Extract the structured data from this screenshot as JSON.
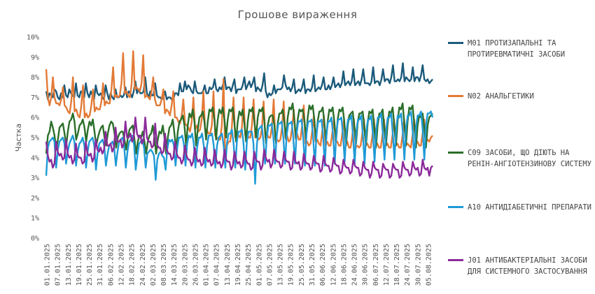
{
  "chart_data": {
    "type": "line",
    "title": "Грошове вираження",
    "ylabel": "Частка",
    "ylim": [
      0,
      10
    ],
    "y_ticks": [
      "0%",
      "1%",
      "2%",
      "3%",
      "4%",
      "5%",
      "6%",
      "7%",
      "8%",
      "9%",
      "10%"
    ],
    "x_tick_labels": [
      "01.01.2025",
      "07.01.2025",
      "13.01.2025",
      "19.01.2025",
      "25.01.2025",
      "31.01.2025",
      "06.02.2025",
      "12.02.2025",
      "18.02.2025",
      "24.02.2025",
      "02.03.2025",
      "08.03.2025",
      "14.03.2025",
      "20.03.2025",
      "26.03.2025",
      "01.04.2025",
      "07.04.2025",
      "13.04.2025",
      "19.04.2025",
      "25.04.2025",
      "01.05.2025",
      "07.05.2025",
      "13.05.2025",
      "19.05.2025",
      "25.05.2025",
      "31.05.2025",
      "06.06.2025",
      "12.06.2025",
      "18.06.2025",
      "24.06.2025",
      "30.06.2025",
      "06.07.2025",
      "12.07.2025",
      "18.07.2025",
      "24.07.2025",
      "30.07.2025",
      "05.08.2025"
    ],
    "x_start": "01.01.2025",
    "x_end": "08.08.2025",
    "legend_position": "right",
    "grid": false,
    "series": [
      {
        "name": "M01 ПРОТИЗАПАЛЬНІ ТА ПРОТИРЕВМАТИЧНІ ЗАСОБИ",
        "color": "#1b5a7a",
        "values": [
          7.3,
          6.9,
          7.2,
          7.1,
          7.0,
          7.4,
          7.3,
          7.0,
          6.9,
          7.2,
          7.0,
          7.6,
          7.1,
          7.0,
          7.4,
          7.2,
          7.1,
          7.0,
          7.7,
          7.1,
          7.0,
          7.3,
          7.2,
          7.0,
          7.7,
          7.2,
          7.0,
          7.3,
          7.1,
          6.9,
          7.6,
          7.2,
          7.1,
          7.2,
          7.0,
          6.9,
          7.6,
          7.2,
          6.9,
          7.2,
          7.0,
          6.9,
          7.4,
          7.0,
          7.0,
          7.1,
          7.0,
          7.1,
          7.5,
          7.0,
          7.3,
          7.2,
          7.0,
          7.3,
          7.8,
          7.2,
          7.4,
          7.2,
          7.2,
          7.3,
          8.0,
          7.2,
          7.0,
          7.3,
          7.1,
          7.1,
          7.7,
          7.1,
          7.0,
          7.0,
          6.9,
          7.0,
          7.3,
          6.9,
          7.0,
          7.0,
          6.9,
          6.9,
          7.2,
          7.2,
          7.1,
          7.7,
          7.3,
          7.3,
          7.8,
          7.4,
          7.6,
          7.5,
          7.3,
          7.2,
          7.8,
          7.3,
          7.2,
          7.2,
          7.2,
          7.3,
          7.6,
          7.2,
          7.2,
          7.5,
          7.4,
          7.5,
          7.9,
          7.4,
          7.3,
          7.5,
          7.4,
          7.6,
          8.0,
          7.4,
          7.5,
          7.5,
          7.3,
          7.6,
          7.9,
          7.2,
          7.4,
          7.4,
          7.4,
          7.6,
          8.0,
          7.4,
          7.6,
          7.8,
          7.5,
          7.7,
          8.0,
          7.3,
          7.5,
          7.4,
          7.3,
          7.6,
          8.2,
          7.3,
          7.0,
          7.2,
          7.1,
          7.2,
          7.6,
          7.2,
          7.4,
          7.4,
          7.4,
          7.5,
          8.1,
          7.6,
          7.4,
          7.5,
          7.3,
          7.5,
          7.9,
          7.2,
          7.3,
          7.4,
          7.3,
          7.5,
          7.9,
          7.2,
          7.4,
          7.4,
          7.3,
          7.5,
          8.1,
          7.3,
          7.4,
          7.5,
          7.4,
          7.6,
          8.0,
          7.4,
          7.4,
          7.6,
          7.4,
          7.6,
          8.0,
          7.5,
          7.6,
          7.7,
          7.5,
          7.7,
          8.3,
          7.6,
          7.7,
          7.8,
          7.6,
          7.8,
          8.4,
          7.6,
          7.7,
          7.8,
          7.6,
          7.9,
          8.4,
          7.7,
          7.7,
          7.7,
          7.6,
          7.8,
          8.5,
          7.7,
          7.8,
          7.8,
          7.6,
          7.9,
          8.4,
          7.8,
          7.9,
          7.9,
          7.7,
          8.0,
          8.6,
          7.8,
          7.8,
          7.9,
          7.8,
          8.0,
          8.7,
          7.8,
          8.0,
          7.9,
          7.8,
          7.9,
          8.5,
          7.8,
          8.0,
          8.0,
          7.8,
          8.1,
          8.6,
          7.9,
          7.8,
          7.9,
          7.7,
          7.8,
          7.9
        ]
      },
      {
        "name": "N02 АНАЛЬГЕТИКИ",
        "color": "#e37a36",
        "values": [
          8.4,
          7.0,
          6.6,
          7.0,
          8.0,
          7.0,
          6.7,
          6.7,
          6.6,
          6.9,
          7.5,
          6.6,
          6.5,
          6.3,
          6.2,
          6.8,
          8.0,
          6.3,
          6.4,
          6.1,
          6.0,
          6.6,
          7.6,
          6.0,
          6.2,
          6.0,
          6.1,
          6.6,
          7.4,
          6.3,
          6.5,
          6.4,
          6.4,
          6.8,
          7.7,
          6.6,
          6.8,
          6.7,
          6.7,
          7.4,
          8.5,
          7.0,
          7.1,
          7.0,
          7.1,
          7.7,
          9.2,
          7.2,
          7.3,
          7.1,
          7.0,
          7.6,
          9.3,
          7.4,
          7.5,
          7.4,
          7.3,
          7.7,
          9.1,
          7.0,
          7.1,
          7.0,
          6.9,
          7.3,
          8.0,
          6.9,
          6.6,
          6.6,
          6.6,
          6.9,
          7.4,
          6.2,
          6.4,
          6.3,
          6.1,
          6.6,
          7.3,
          6.0,
          6.0,
          5.8,
          5.7,
          6.1,
          6.9,
          5.7,
          5.6,
          5.5,
          5.3,
          5.8,
          7.0,
          5.4,
          5.6,
          5.3,
          5.4,
          5.9,
          7.3,
          5.4,
          5.4,
          5.2,
          5.2,
          5.6,
          7.3,
          5.1,
          5.0,
          4.9,
          4.9,
          5.6,
          7.9,
          4.1,
          4.6,
          4.8,
          4.8,
          5.5,
          7.0,
          5.0,
          5.2,
          5.1,
          5.0,
          5.5,
          7.0,
          5.1,
          5.2,
          5.0,
          5.0,
          5.6,
          6.9,
          5.0,
          5.1,
          4.9,
          5.0,
          5.5,
          6.8,
          5.0,
          5.2,
          5.0,
          5.0,
          5.6,
          6.9,
          4.9,
          4.9,
          4.8,
          4.9,
          5.5,
          6.8,
          5.0,
          5.1,
          4.8,
          4.9,
          5.5,
          6.4,
          5.0,
          5.2,
          4.9,
          4.9,
          5.6,
          6.6,
          4.7,
          4.8,
          4.6,
          4.7,
          5.3,
          6.1,
          4.8,
          4.9,
          4.7,
          4.6,
          5.3,
          6.1,
          4.6,
          4.8,
          4.6,
          4.6,
          5.2,
          5.9,
          4.8,
          4.8,
          4.6,
          4.6,
          5.2,
          5.9,
          4.7,
          4.8,
          4.5,
          4.5,
          5.1,
          5.9,
          4.5,
          4.6,
          4.5,
          4.6,
          5.2,
          5.9,
          4.6,
          4.7,
          4.5,
          4.5,
          5.1,
          5.9,
          4.6,
          4.7,
          4.5,
          4.5,
          5.1,
          5.9,
          4.6,
          4.7,
          4.5,
          4.5,
          5.1,
          5.9,
          4.6,
          4.7,
          4.5,
          4.5,
          5.1,
          5.9,
          4.6,
          4.7,
          4.6,
          4.5,
          5.1,
          5.9,
          4.7,
          4.8,
          4.6,
          4.6,
          5.2,
          5.9,
          4.8,
          4.9,
          4.8,
          5.0,
          5.1
        ]
      },
      {
        "name": "C09 ЗАСОБИ, ЩО ДІЮТЬ НА РЕНІН-АНГІОТЕНЗИНОВУ СИСТЕМУ",
        "color": "#2a6e2a",
        "values": [
          4.2,
          5.1,
          5.3,
          5.8,
          5.5,
          5.1,
          4.4,
          4.9,
          5.5,
          5.6,
          5.7,
          5.2,
          4.6,
          5.3,
          5.8,
          5.9,
          6.2,
          5.8,
          4.9,
          5.2,
          5.6,
          5.7,
          5.9,
          5.5,
          4.8,
          5.4,
          5.8,
          5.6,
          5.9,
          5.3,
          4.6,
          5.0,
          5.3,
          5.5,
          5.6,
          5.0,
          4.6,
          5.2,
          5.6,
          5.8,
          5.7,
          5.2,
          4.5,
          5.0,
          5.2,
          5.3,
          5.3,
          4.9,
          4.4,
          5.0,
          5.4,
          5.5,
          5.6,
          4.9,
          4.2,
          4.8,
          5.1,
          5.0,
          5.3,
          4.8,
          4.2,
          4.8,
          5.1,
          5.2,
          5.6,
          5.0,
          4.2,
          4.9,
          5.3,
          5.2,
          5.6,
          5.0,
          4.2,
          5.0,
          5.5,
          5.6,
          5.9,
          5.2,
          4.4,
          5.3,
          5.8,
          5.9,
          6.1,
          5.6,
          4.6,
          5.6,
          6.2,
          6.0,
          6.4,
          5.8,
          4.6,
          5.4,
          6.0,
          6.1,
          6.3,
          5.8,
          4.9,
          5.8,
          6.4,
          6.3,
          6.5,
          5.9,
          4.9,
          5.9,
          6.4,
          6.2,
          6.5,
          5.9,
          5.0,
          5.9,
          6.4,
          6.3,
          6.5,
          5.7,
          4.8,
          5.8,
          6.3,
          6.1,
          6.4,
          5.7,
          4.8,
          5.8,
          6.4,
          6.3,
          6.5,
          5.8,
          5.0,
          6.0,
          6.4,
          6.3,
          6.5,
          5.8,
          4.7,
          5.6,
          6.0,
          6.1,
          6.1,
          5.6,
          4.7,
          5.7,
          6.2,
          6.2,
          6.4,
          5.8,
          4.9,
          6.0,
          6.5,
          6.4,
          6.7,
          5.9,
          4.9,
          5.9,
          6.4,
          6.3,
          6.4,
          5.9,
          4.9,
          6.0,
          6.6,
          6.4,
          6.6,
          5.9,
          4.8,
          5.8,
          6.3,
          6.3,
          6.5,
          5.8,
          4.8,
          5.8,
          6.4,
          6.3,
          6.5,
          5.8,
          4.8,
          5.9,
          6.4,
          6.3,
          6.5,
          5.8,
          4.6,
          5.6,
          6.1,
          6.2,
          6.3,
          5.6,
          4.7,
          5.7,
          6.2,
          6.2,
          6.3,
          5.6,
          4.6,
          5.7,
          6.3,
          6.2,
          6.4,
          5.5,
          4.5,
          5.6,
          6.2,
          6.2,
          6.4,
          5.5,
          4.6,
          5.7,
          6.3,
          6.2,
          6.5,
          5.6,
          4.6,
          5.8,
          6.5,
          6.4,
          6.7,
          5.7,
          4.6,
          5.8,
          6.5,
          6.4,
          6.6,
          5.7,
          4.5,
          5.6,
          6.1,
          6.0,
          6.2,
          5.5,
          4.5,
          5.6,
          6.0,
          6.1,
          6.2
        ]
      },
      {
        "name": "A10 АНТИДІАБЕТИЧНІ ПРЕПАРАТИ",
        "color": "#1f9ad6",
        "values": [
          3.1,
          4.5,
          4.8,
          4.9,
          5.0,
          4.8,
          3.5,
          4.4,
          4.8,
          4.9,
          5.0,
          4.7,
          3.7,
          4.3,
          4.7,
          4.9,
          5.1,
          4.8,
          3.6,
          4.3,
          4.7,
          4.8,
          5.0,
          4.6,
          3.5,
          4.3,
          4.8,
          4.9,
          5.0,
          4.6,
          3.4,
          4.2,
          4.7,
          4.8,
          4.9,
          4.6,
          3.6,
          4.2,
          4.6,
          4.7,
          4.8,
          4.5,
          3.6,
          4.3,
          4.8,
          4.9,
          5.0,
          4.6,
          3.5,
          4.3,
          4.8,
          4.9,
          5.1,
          4.6,
          3.4,
          4.1,
          4.7,
          4.8,
          4.9,
          4.5,
          3.5,
          4.2,
          4.3,
          4.4,
          4.3,
          4.1,
          2.9,
          3.9,
          4.2,
          4.3,
          4.1,
          4.0,
          3.4,
          4.4,
          4.9,
          4.8,
          4.9,
          4.6,
          3.6,
          4.5,
          5.0,
          5.0,
          5.1,
          4.7,
          3.6,
          4.7,
          5.1,
          5.0,
          5.2,
          4.7,
          3.5,
          4.5,
          5.0,
          5.0,
          5.2,
          4.6,
          3.5,
          4.6,
          5.1,
          5.1,
          5.2,
          4.6,
          3.5,
          4.6,
          5.0,
          5.1,
          5.2,
          4.6,
          3.5,
          4.7,
          5.2,
          5.2,
          5.4,
          4.7,
          3.5,
          4.8,
          5.3,
          5.3,
          5.4,
          4.7,
          3.4,
          4.8,
          5.3,
          5.3,
          5.3,
          4.7,
          2.7,
          4.6,
          5.4,
          5.5,
          5.6,
          4.8,
          3.7,
          5.0,
          5.6,
          5.6,
          5.7,
          5.0,
          3.7,
          5.1,
          5.7,
          5.7,
          5.8,
          5.0,
          3.7,
          5.1,
          5.7,
          5.7,
          5.8,
          5.0,
          3.7,
          5.2,
          5.8,
          5.8,
          5.9,
          5.0,
          3.6,
          5.2,
          5.8,
          5.8,
          5.9,
          5.0,
          3.6,
          5.2,
          5.8,
          5.8,
          5.9,
          5.1,
          3.6,
          5.2,
          5.8,
          5.8,
          6.0,
          5.1,
          3.7,
          5.3,
          5.9,
          5.9,
          6.0,
          5.1,
          3.8,
          5.3,
          5.9,
          5.9,
          6.1,
          5.1,
          3.7,
          5.3,
          5.9,
          5.9,
          6.1,
          5.1,
          3.7,
          5.3,
          5.9,
          5.9,
          6.1,
          5.2,
          3.8,
          5.4,
          6.0,
          6.0,
          6.2,
          5.2,
          3.9,
          5.4,
          6.0,
          6.0,
          6.2,
          5.2,
          3.9,
          5.4,
          6.1,
          6.0,
          6.2,
          5.3,
          3.9,
          5.5,
          6.1,
          6.1,
          6.3,
          5.3,
          3.9,
          5.5,
          6.1,
          6.1,
          6.3,
          5.4,
          3.9,
          5.6,
          6.2,
          6.2,
          6.3,
          6.0
        ]
      },
      {
        "name": "J01 АНТИБАКТЕРІАЛЬНІ ЗАСОБИ ДЛЯ СИСТЕМНОГО ЗАСТОСУВАННЯ",
        "color": "#8b2a9a",
        "values": [
          4.8,
          4.1,
          3.8,
          3.9,
          3.5,
          3.7,
          4.8,
          4.3,
          4.1,
          4.2,
          3.9,
          4.0,
          4.9,
          4.2,
          4.0,
          4.1,
          3.7,
          3.9,
          4.7,
          4.1,
          4.0,
          4.0,
          3.7,
          3.8,
          4.8,
          4.2,
          4.1,
          4.2,
          3.8,
          4.0,
          4.9,
          4.4,
          4.3,
          4.5,
          4.2,
          4.4,
          5.3,
          4.6,
          4.6,
          4.7,
          4.3,
          4.5,
          5.5,
          4.8,
          4.8,
          4.9,
          4.5,
          4.7,
          5.8,
          5.0,
          5.0,
          5.2,
          4.8,
          5.0,
          6.0,
          5.2,
          5.0,
          5.1,
          4.7,
          4.9,
          6.0,
          5.0,
          4.8,
          4.8,
          4.5,
          4.6,
          5.7,
          4.7,
          4.5,
          4.5,
          4.2,
          4.3,
          5.2,
          4.4,
          4.2,
          4.2,
          3.9,
          4.0,
          4.8,
          4.2,
          4.0,
          4.0,
          3.7,
          3.9,
          4.6,
          4.1,
          3.9,
          3.9,
          3.6,
          3.8,
          4.5,
          4.0,
          3.8,
          3.9,
          3.6,
          3.7,
          4.5,
          4.0,
          3.8,
          3.9,
          3.6,
          3.7,
          4.4,
          3.9,
          3.7,
          3.8,
          3.5,
          3.7,
          4.4,
          3.9,
          3.8,
          3.8,
          3.4,
          3.6,
          4.3,
          3.9,
          3.7,
          3.8,
          3.5,
          3.6,
          4.3,
          3.9,
          3.7,
          3.7,
          3.4,
          3.5,
          4.3,
          3.9,
          3.8,
          3.8,
          3.4,
          3.6,
          4.4,
          4.0,
          3.8,
          3.9,
          3.5,
          3.7,
          4.4,
          3.9,
          3.8,
          3.8,
          3.5,
          3.6,
          4.3,
          3.9,
          3.8,
          3.8,
          3.4,
          3.5,
          4.3,
          3.8,
          3.7,
          3.8,
          3.4,
          3.5,
          4.2,
          3.8,
          3.7,
          3.7,
          3.4,
          3.5,
          4.1,
          3.8,
          3.7,
          3.7,
          3.3,
          3.4,
          4.1,
          3.7,
          3.6,
          3.6,
          3.3,
          3.4,
          4.0,
          3.7,
          3.6,
          3.6,
          3.2,
          3.3,
          3.9,
          3.6,
          3.5,
          3.5,
          3.2,
          3.3,
          3.9,
          3.6,
          3.5,
          3.5,
          3.1,
          3.2,
          3.8,
          3.5,
          3.4,
          3.4,
          3.0,
          3.2,
          3.8,
          3.5,
          3.4,
          3.4,
          3.0,
          3.1,
          3.7,
          3.5,
          3.4,
          3.4,
          3.0,
          3.1,
          3.7,
          3.5,
          3.4,
          3.4,
          3.0,
          3.1,
          3.8,
          3.5,
          3.4,
          3.4,
          3.1,
          3.2,
          3.8,
          3.5,
          3.4,
          3.5,
          3.1,
          3.2,
          3.9,
          3.5,
          3.4,
          3.5,
          3.1,
          3.5,
          3.6
        ]
      }
    ]
  }
}
